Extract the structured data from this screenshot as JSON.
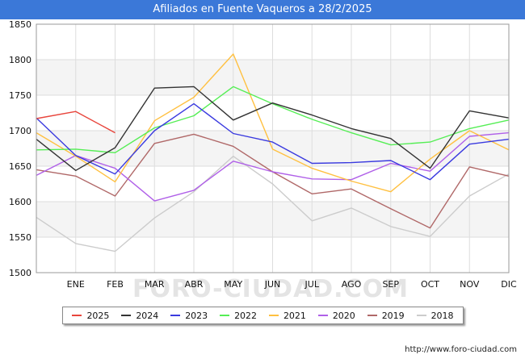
{
  "header": {
    "title": "Afiliados en Fuente Vaqueros a 28/2/2025"
  },
  "footer": {
    "url": "http://www.foro-ciudad.com"
  },
  "watermark": "FORO-CIUDAD.COM",
  "chart_data": {
    "type": "line",
    "title": "Afiliados en Fuente Vaqueros a 28/2/2025",
    "xlabel": "",
    "ylabel": "",
    "categories": [
      "",
      "ENE",
      "FEB",
      "MAR",
      "ABR",
      "MAY",
      "JUN",
      "JUL",
      "AGO",
      "SEP",
      "OCT",
      "NOV",
      "DIC"
    ],
    "ylim": [
      1500,
      1850
    ],
    "yticks": [
      1500,
      1550,
      1600,
      1650,
      1700,
      1750,
      1800,
      1850
    ],
    "grid": true,
    "legend_position": "bottom",
    "series": [
      {
        "name": "2025",
        "color": "#e8453c",
        "values": [
          1717,
          1727,
          1697,
          null,
          null,
          null,
          null,
          null,
          null,
          null,
          null,
          null,
          null
        ]
      },
      {
        "name": "2024",
        "color": "#333333",
        "values": [
          1688,
          1644,
          1676,
          1760,
          1762,
          1715,
          1739,
          1722,
          1703,
          1689,
          1647,
          1728,
          1718
        ]
      },
      {
        "name": "2023",
        "color": "#3a3adf",
        "values": [
          1718,
          1665,
          1639,
          1700,
          1738,
          1696,
          1684,
          1654,
          1655,
          1658,
          1631,
          1681,
          1688
        ]
      },
      {
        "name": "2022",
        "color": "#55ee55",
        "values": [
          1673,
          1674,
          1669,
          1704,
          1721,
          1762,
          1738,
          1716,
          1697,
          1680,
          1684,
          1703,
          1715
        ]
      },
      {
        "name": "2021",
        "color": "#ffc040",
        "values": [
          1697,
          1664,
          1628,
          1714,
          1747,
          1808,
          1674,
          1647,
          1629,
          1614,
          1660,
          1700,
          1673
        ]
      },
      {
        "name": "2020",
        "color": "#b060e8",
        "values": [
          1637,
          1665,
          1647,
          1601,
          1616,
          1657,
          1642,
          1632,
          1631,
          1654,
          1643,
          1692,
          1697
        ]
      },
      {
        "name": "2019",
        "color": "#b06868",
        "values": [
          1645,
          1636,
          1608,
          1682,
          1695,
          1678,
          1642,
          1611,
          1618,
          1590,
          1563,
          1649,
          1636
        ]
      },
      {
        "name": "2018",
        "color": "#cccccc",
        "values": [
          1578,
          1541,
          1530,
          1577,
          1614,
          1664,
          1625,
          1573,
          1591,
          1565,
          1551,
          1608,
          1639
        ]
      }
    ]
  }
}
